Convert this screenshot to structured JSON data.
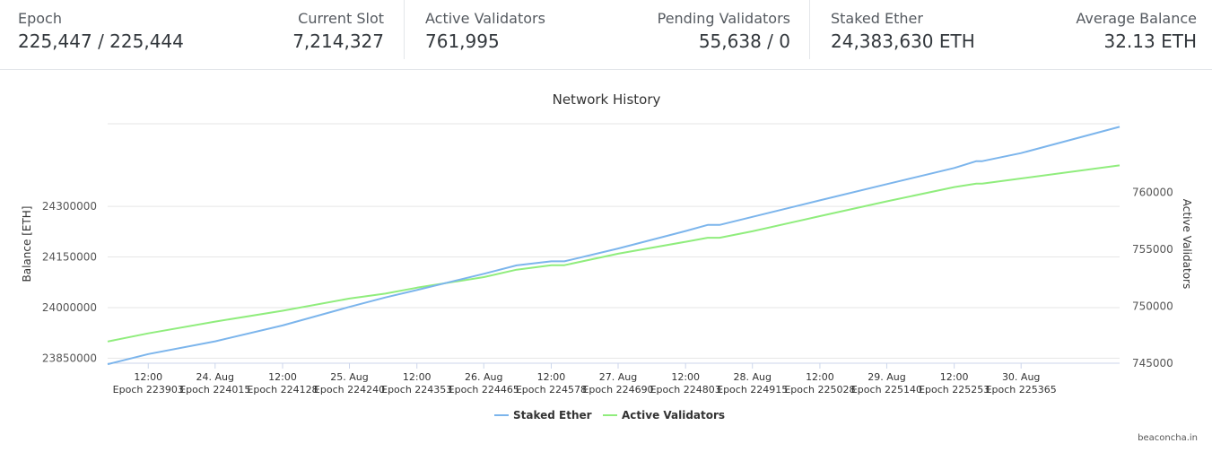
{
  "stats": {
    "epoch": {
      "label": "Epoch",
      "value": "225,447 / 225,444"
    },
    "current_slot": {
      "label": "Current Slot",
      "value": "7,214,327"
    },
    "active_validators": {
      "label": "Active Validators",
      "value": "761,995"
    },
    "pending_validators": {
      "label": "Pending Validators",
      "value": "55,638 / 0"
    },
    "staked_ether": {
      "label": "Staked Ether",
      "value": "24,383,630 ETH"
    },
    "average_balance": {
      "label": "Average Balance",
      "value": "32.13 ETH"
    }
  },
  "chart_data": {
    "type": "line",
    "title": "Network History",
    "ylabel_left": "Balance [ETH]",
    "ylabel_right": "Active Validators",
    "xlim": [
      223835,
      225530
    ],
    "ylim_left": [
      23835000,
      24545000
    ],
    "ylim_right": [
      745000,
      766000
    ],
    "y_left_ticks": [
      "23850000",
      "24000000",
      "24150000",
      "24300000"
    ],
    "y_left_tick_values": [
      23850000,
      24000000,
      24150000,
      24300000
    ],
    "y_right_ticks": [
      "745000",
      "750000",
      "755000",
      "760000"
    ],
    "y_right_tick_values": [
      745000,
      750000,
      755000,
      760000
    ],
    "x_ticks": [
      {
        "epoch": 223903,
        "top": "12:00",
        "bottom": "Epoch 223903"
      },
      {
        "epoch": 224015,
        "top": "24. Aug",
        "bottom": "Epoch 224015"
      },
      {
        "epoch": 224128,
        "top": "12:00",
        "bottom": "Epoch 224128"
      },
      {
        "epoch": 224240,
        "top": "25. Aug",
        "bottom": "Epoch 224240"
      },
      {
        "epoch": 224353,
        "top": "12:00",
        "bottom": "Epoch 224353"
      },
      {
        "epoch": 224465,
        "top": "26. Aug",
        "bottom": "Epoch 224465"
      },
      {
        "epoch": 224578,
        "top": "12:00",
        "bottom": "Epoch 224578"
      },
      {
        "epoch": 224690,
        "top": "27. Aug",
        "bottom": "Epoch 224690"
      },
      {
        "epoch": 224803,
        "top": "12:00",
        "bottom": "Epoch 224803"
      },
      {
        "epoch": 224915,
        "top": "28. Aug",
        "bottom": "Epoch 224915"
      },
      {
        "epoch": 225028,
        "top": "12:00",
        "bottom": "Epoch 225028"
      },
      {
        "epoch": 225140,
        "top": "29. Aug",
        "bottom": "Epoch 225140"
      },
      {
        "epoch": 225253,
        "top": "12:00",
        "bottom": "Epoch 225253"
      },
      {
        "epoch": 225365,
        "top": "30. Aug",
        "bottom": "Epoch 225365"
      }
    ],
    "series": [
      {
        "name": "Staked Ether",
        "axis": "left",
        "color": "#7cb5ec",
        "x": [
          223835,
          223903,
          224015,
          224128,
          224240,
          224300,
          224353,
          224465,
          224520,
          224578,
          224600,
          224690,
          224803,
          224840,
          224860,
          224915,
          225028,
          225140,
          225253,
          225290,
          225300,
          225365,
          225530
        ],
        "y": [
          23832000,
          23862000,
          23900000,
          23947000,
          24002000,
          24030000,
          24052000,
          24100000,
          24125000,
          24137000,
          24137000,
          24175000,
          24227000,
          24245000,
          24245000,
          24269000,
          24318000,
          24366000,
          24414000,
          24434000,
          24434000,
          24458000,
          24536000
        ]
      },
      {
        "name": "Active Validators",
        "axis": "right",
        "color": "#90ed7d",
        "x": [
          223835,
          223903,
          224015,
          224128,
          224240,
          224300,
          224353,
          224465,
          224520,
          224578,
          224600,
          224690,
          224803,
          224840,
          224860,
          224915,
          225028,
          225140,
          225253,
          225290,
          225300,
          225365,
          225530
        ],
        "y": [
          746900,
          747620,
          748650,
          749600,
          750670,
          751100,
          751620,
          752550,
          753200,
          753600,
          753600,
          754600,
          755650,
          756000,
          756000,
          756570,
          757900,
          759200,
          760450,
          760750,
          760750,
          761200,
          762350
        ]
      }
    ],
    "legend_position": "bottom-center",
    "credit": "beaconcha.in"
  }
}
